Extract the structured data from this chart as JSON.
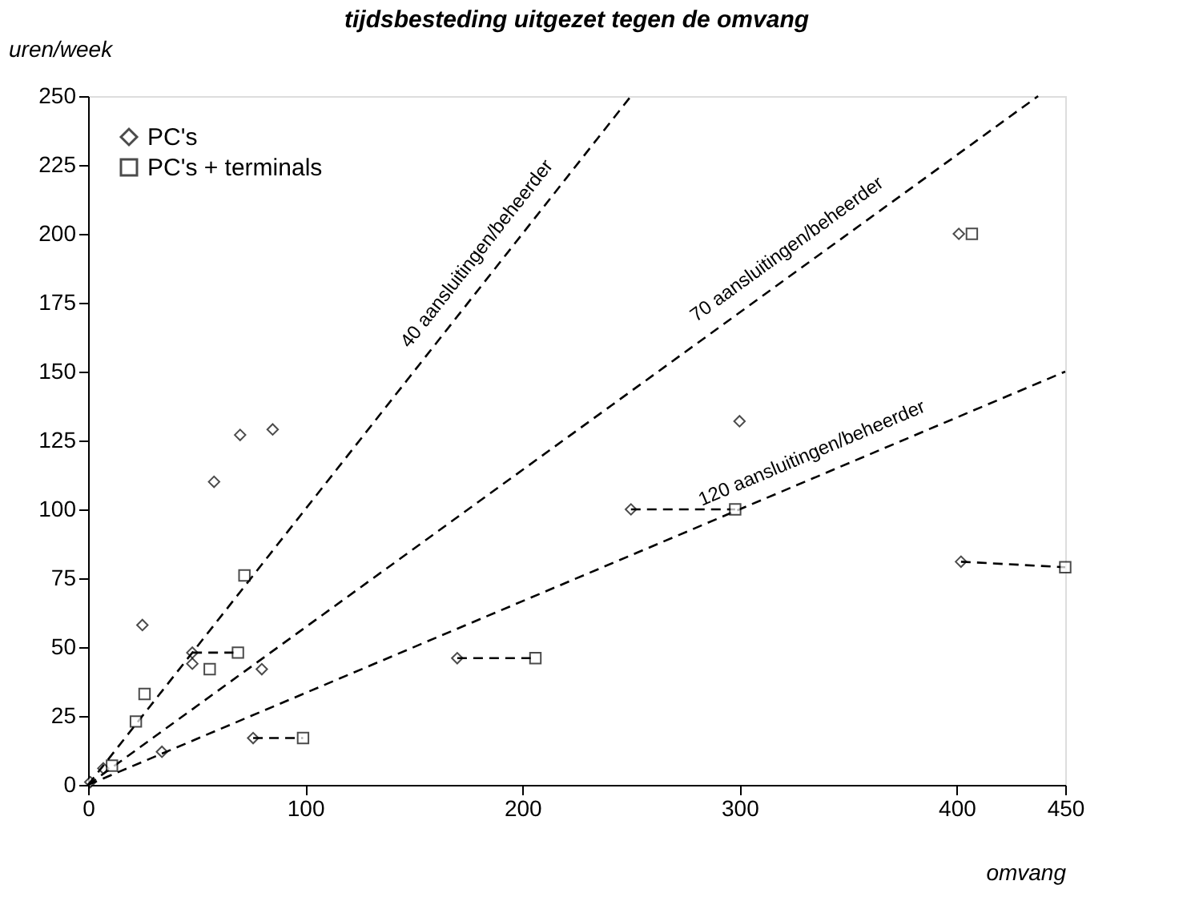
{
  "chart_data": {
    "type": "scatter",
    "title": "tijdsbesteding uitgezet tegen de omvang",
    "xlabel": "omvang",
    "ylabel": "uren/week",
    "xlim": [
      0,
      450
    ],
    "xticks": [
      0,
      100,
      200,
      300,
      400,
      450
    ],
    "ylim": [
      0,
      250
    ],
    "yticks": [
      0,
      25,
      50,
      75,
      100,
      125,
      150,
      175,
      200,
      225,
      250
    ],
    "grid": false,
    "legend": "top left",
    "series": [
      {
        "name": "PC's",
        "marker": "diamond",
        "color": "#000000",
        "x": [
          1,
          7,
          25,
          48,
          48,
          58,
          70,
          85,
          80,
          76,
          170,
          250,
          300,
          401,
          402,
          34
        ],
        "values": [
          1,
          6,
          58,
          48,
          44,
          110,
          127,
          129,
          42,
          17,
          46,
          100,
          132,
          200,
          81,
          12
        ]
      },
      {
        "name": "PC's + terminals",
        "marker": "square",
        "color": "#000000",
        "x": [
          11,
          22,
          26,
          56,
          69,
          72,
          99,
          206,
          298,
          407,
          450
        ],
        "values": [
          7,
          23,
          33,
          42,
          48,
          76,
          17,
          46,
          100,
          200,
          79
        ]
      },
      {
        "name": "40 aansluitingen/beheerder",
        "type": "line",
        "line_style": "dashed",
        "color": "#000000",
        "x": [
          0,
          250
        ],
        "values": [
          0,
          250
        ]
      },
      {
        "name": "70 aansluitingen/beheerder",
        "type": "line",
        "line_style": "dashed",
        "color": "#000000",
        "x": [
          0,
          437.5
        ],
        "values": [
          0,
          250
        ]
      },
      {
        "name": "120 aansluitingen/beheerder",
        "type": "line",
        "line_style": "dashed",
        "color": "#000000",
        "x": [
          0,
          450
        ],
        "values": [
          0,
          150
        ]
      },
      {
        "type": "line",
        "line_style": "dashed",
        "color": "#000000",
        "x": [
          48,
          69
        ],
        "values": [
          48,
          48
        ]
      },
      {
        "type": "line",
        "line_style": "dashed",
        "color": "#000000",
        "x": [
          76,
          99
        ],
        "values": [
          17,
          17
        ]
      },
      {
        "type": "line",
        "line_style": "dashed",
        "color": "#000000",
        "x": [
          170,
          206
        ],
        "values": [
          46,
          46
        ]
      },
      {
        "type": "line",
        "line_style": "dashed",
        "color": "#000000",
        "x": [
          250,
          298
        ],
        "values": [
          100,
          100
        ]
      },
      {
        "type": "line",
        "line_style": "dashed",
        "color": "#000000",
        "x": [
          402,
          450
        ],
        "values": [
          81,
          79
        ]
      }
    ]
  }
}
